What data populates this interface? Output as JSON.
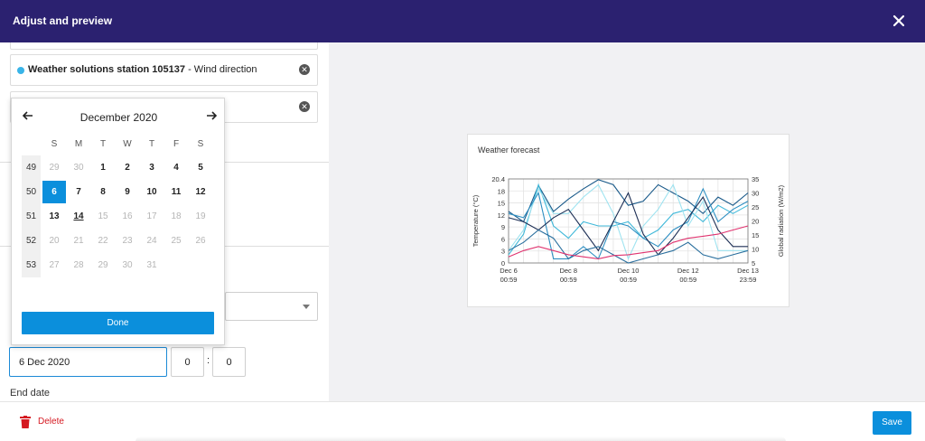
{
  "header": {
    "title": "Adjust and preview"
  },
  "series_rows": [
    {
      "station": "Weather solutions station 105137",
      "suffix": " - Wind direction",
      "dot_color": "#39b4e8"
    }
  ],
  "calendar": {
    "month_label": "December 2020",
    "weekdays": [
      "S",
      "M",
      "T",
      "W",
      "T",
      "F",
      "S"
    ],
    "weeks": [
      {
        "num": "49",
        "days": [
          {
            "d": "29",
            "s": "grey"
          },
          {
            "d": "30",
            "s": "grey"
          },
          {
            "d": "1",
            "s": "bold"
          },
          {
            "d": "2",
            "s": "bold"
          },
          {
            "d": "3",
            "s": "bold"
          },
          {
            "d": "4",
            "s": "bold"
          },
          {
            "d": "5",
            "s": "bold"
          }
        ]
      },
      {
        "num": "50",
        "days": [
          {
            "d": "6",
            "s": "sel"
          },
          {
            "d": "7",
            "s": "bold"
          },
          {
            "d": "8",
            "s": "bold"
          },
          {
            "d": "9",
            "s": "bold"
          },
          {
            "d": "10",
            "s": "bold"
          },
          {
            "d": "11",
            "s": "bold"
          },
          {
            "d": "12",
            "s": "bold"
          }
        ]
      },
      {
        "num": "51",
        "days": [
          {
            "d": "13",
            "s": "bold"
          },
          {
            "d": "14",
            "s": "today"
          },
          {
            "d": "15",
            "s": "grey"
          },
          {
            "d": "16",
            "s": "grey"
          },
          {
            "d": "17",
            "s": "grey"
          },
          {
            "d": "18",
            "s": "grey"
          },
          {
            "d": "19",
            "s": "grey"
          }
        ]
      },
      {
        "num": "52",
        "days": [
          {
            "d": "20",
            "s": "grey"
          },
          {
            "d": "21",
            "s": "grey"
          },
          {
            "d": "22",
            "s": "grey"
          },
          {
            "d": "23",
            "s": "grey"
          },
          {
            "d": "24",
            "s": "grey"
          },
          {
            "d": "25",
            "s": "grey"
          },
          {
            "d": "26",
            "s": "grey"
          }
        ]
      },
      {
        "num": "53",
        "days": [
          {
            "d": "27",
            "s": "grey"
          },
          {
            "d": "28",
            "s": "grey"
          },
          {
            "d": "29",
            "s": "grey"
          },
          {
            "d": "30",
            "s": "grey"
          },
          {
            "d": "31",
            "s": "grey"
          }
        ]
      }
    ],
    "done_label": "Done"
  },
  "start_date": {
    "value": "6 Dec 2020",
    "hour": "0",
    "minute": "0",
    "separator": ":"
  },
  "end_date": {
    "label": "End date"
  },
  "footer": {
    "delete_label": "Delete",
    "save_label": "Save"
  },
  "colors": {
    "header_bg": "#2b2170",
    "primary": "#0b8fdc",
    "danger": "#d51921"
  },
  "chart_data": {
    "type": "line",
    "title": "Weather forecast",
    "ylabel": "Temperature (°C)",
    "y2label": "Global radiation (W/m2)",
    "ylim": [
      0,
      20.4
    ],
    "y2lim": [
      5,
      35
    ],
    "yticks": [
      "20.4",
      "18",
      "15",
      "12",
      "9",
      "6",
      "3",
      "0"
    ],
    "y2ticks": [
      "35",
      "30",
      "25",
      "20",
      "15",
      "10",
      "5"
    ],
    "xticks": [
      {
        "top": "Dec 6",
        "bottom": "00:59"
      },
      {
        "top": "Dec 8",
        "bottom": "00:59"
      },
      {
        "top": "Dec 10",
        "bottom": "00:59"
      },
      {
        "top": "Dec 12",
        "bottom": "00:59"
      },
      {
        "top": "Dec 13",
        "bottom": "23:59"
      }
    ],
    "x": [
      0,
      0.5,
      1,
      1.5,
      2,
      2.5,
      3,
      3.5,
      4,
      4.5,
      5,
      5.5,
      6,
      6.5,
      7,
      7.5,
      8
    ],
    "grid": true,
    "series": [
      {
        "axis": "left",
        "color": "#1a5a8a",
        "values": [
          12.5,
          10,
          18.8,
          12.5,
          15.5,
          18,
          20.2,
          19,
          14,
          15,
          19,
          17,
          15,
          12,
          16,
          14,
          17
        ]
      },
      {
        "axis": "left",
        "color": "#3fb8d9",
        "values": [
          2,
          7,
          19,
          9,
          6,
          10,
          9,
          9,
          10,
          6,
          8,
          12,
          13,
          10,
          14,
          12,
          14
        ]
      },
      {
        "axis": "left",
        "color": "#9ee3f0",
        "values": [
          3,
          8,
          18,
          12,
          12,
          16,
          19,
          12,
          1,
          9,
          13,
          19,
          9,
          15,
          3,
          3,
          3
        ]
      },
      {
        "axis": "left",
        "color": "#2e8fc2",
        "values": [
          12,
          11,
          17,
          1,
          1,
          4,
          1,
          10,
          9,
          6,
          4,
          8,
          10,
          18,
          10,
          13,
          15
        ]
      },
      {
        "axis": "left",
        "color": "#1d2f55",
        "values": [
          11,
          10,
          8,
          11,
          13,
          8,
          3,
          10,
          17,
          7,
          2,
          6,
          11,
          16,
          8,
          4,
          4
        ]
      },
      {
        "axis": "left",
        "color": "#2a6f9e",
        "values": [
          3,
          5,
          8,
          6,
          1,
          3,
          4,
          2,
          0,
          1,
          2,
          3,
          5,
          2,
          1,
          2,
          3
        ]
      },
      {
        "axis": "left",
        "color": "#e0336f",
        "values": [
          1.5,
          3,
          4,
          3,
          2,
          1.5,
          1,
          1.8,
          2,
          2.5,
          3,
          5,
          6,
          6.5,
          7,
          8,
          9
        ]
      }
    ]
  }
}
